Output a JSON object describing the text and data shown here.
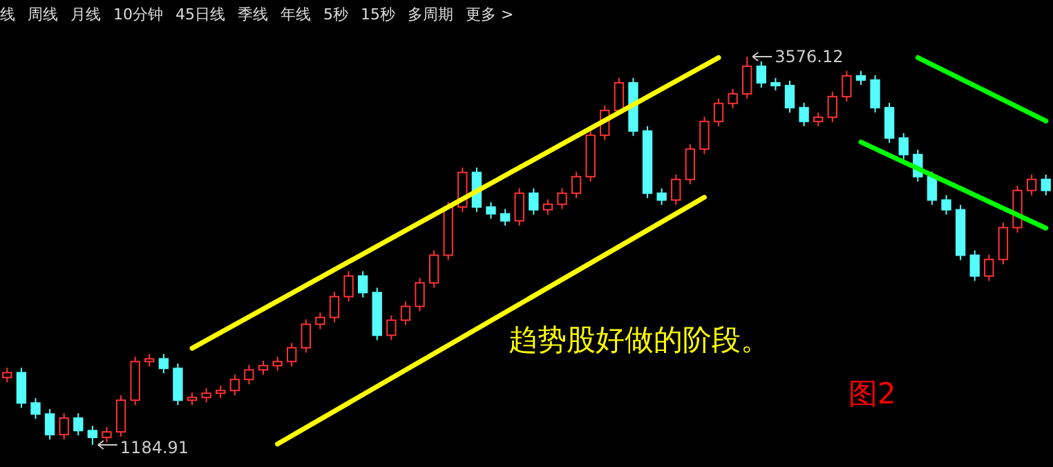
{
  "chart_data": {
    "type": "candlestick",
    "categories": [
      null,
      null,
      null,
      null,
      null,
      null,
      null,
      null,
      null,
      null,
      null,
      null,
      null,
      null,
      null,
      null,
      null,
      null,
      null,
      null,
      null,
      null,
      null,
      null,
      null,
      null,
      null,
      null,
      null,
      null,
      null,
      null,
      null,
      null,
      null,
      null,
      null,
      null,
      null,
      null,
      null,
      null,
      null,
      null,
      null,
      null,
      null,
      null,
      null,
      null,
      null,
      null,
      null,
      null,
      null,
      null,
      null,
      null,
      null,
      null,
      null,
      null,
      null,
      null,
      null,
      null,
      null,
      null,
      null,
      null,
      null,
      null,
      null,
      null
    ],
    "ohlc": [
      [
        1600,
        1660,
        1570,
        1630
      ],
      [
        1630,
        1660,
        1413,
        1443
      ],
      [
        1443,
        1473,
        1345,
        1375
      ],
      [
        1375,
        1405,
        1218,
        1248
      ],
      [
        1248,
        1380,
        1218,
        1350
      ],
      [
        1350,
        1380,
        1243,
        1273
      ],
      [
        1273,
        1303,
        1184.91,
        1231
      ],
      [
        1231,
        1295,
        1201,
        1265
      ],
      [
        1265,
        1490,
        1235,
        1460
      ],
      [
        1460,
        1728,
        1430,
        1698
      ],
      [
        1698,
        1745,
        1668,
        1715
      ],
      [
        1715,
        1745,
        1626,
        1656
      ],
      [
        1656,
        1686,
        1430,
        1460
      ],
      [
        1460,
        1507,
        1430,
        1477
      ],
      [
        1477,
        1533,
        1447,
        1503
      ],
      [
        1503,
        1550,
        1473,
        1520
      ],
      [
        1520,
        1618,
        1490,
        1588
      ],
      [
        1588,
        1677,
        1558,
        1647
      ],
      [
        1647,
        1703,
        1617,
        1673
      ],
      [
        1673,
        1728,
        1643,
        1698
      ],
      [
        1698,
        1813,
        1668,
        1783
      ],
      [
        1783,
        1958,
        1753,
        1928
      ],
      [
        1928,
        2000,
        1898,
        1970
      ],
      [
        1970,
        2128,
        1940,
        2098
      ],
      [
        2098,
        2255,
        2068,
        2225
      ],
      [
        2225,
        2255,
        2093,
        2123
      ],
      [
        2123,
        2153,
        1830,
        1860
      ],
      [
        1860,
        1983,
        1830,
        1953
      ],
      [
        1953,
        2068,
        1923,
        2038
      ],
      [
        2038,
        2213,
        2008,
        2183
      ],
      [
        2183,
        2383,
        2153,
        2353
      ],
      [
        2353,
        2680,
        2323,
        2650
      ],
      [
        2650,
        2893,
        2620,
        2863
      ],
      [
        2863,
        2893,
        2620,
        2650
      ],
      [
        2650,
        2680,
        2578,
        2608
      ],
      [
        2608,
        2638,
        2535,
        2565
      ],
      [
        2565,
        2765,
        2535,
        2735
      ],
      [
        2735,
        2765,
        2603,
        2633
      ],
      [
        2633,
        2697,
        2603,
        2667
      ],
      [
        2667,
        2765,
        2637,
        2735
      ],
      [
        2735,
        2867,
        2705,
        2837
      ],
      [
        2837,
        3122,
        2807,
        3092
      ],
      [
        3092,
        3275,
        3062,
        3245
      ],
      [
        3245,
        3445,
        3215,
        3415
      ],
      [
        3415,
        3445,
        3088,
        3118
      ],
      [
        3118,
        3148,
        2705,
        2735
      ],
      [
        2735,
        2765,
        2663,
        2693
      ],
      [
        2693,
        2850,
        2663,
        2820
      ],
      [
        2820,
        3037,
        2790,
        3007
      ],
      [
        3007,
        3207,
        2977,
        3177
      ],
      [
        3177,
        3318,
        3147,
        3288
      ],
      [
        3288,
        3377,
        3258,
        3347
      ],
      [
        3347,
        3576.12,
        3317,
        3517
      ],
      [
        3517,
        3547,
        3385,
        3415
      ],
      [
        3415,
        3445,
        3368,
        3398
      ],
      [
        3398,
        3428,
        3232,
        3262
      ],
      [
        3262,
        3292,
        3147,
        3177
      ],
      [
        3177,
        3233,
        3147,
        3203
      ],
      [
        3203,
        3360,
        3173,
        3330
      ],
      [
        3330,
        3488,
        3300,
        3458
      ],
      [
        3458,
        3488,
        3402,
        3432
      ],
      [
        3432,
        3462,
        3232,
        3262
      ],
      [
        3262,
        3292,
        3045,
        3075
      ],
      [
        3075,
        3105,
        2943,
        2973
      ],
      [
        2973,
        3003,
        2807,
        2837
      ],
      [
        2837,
        2867,
        2663,
        2693
      ],
      [
        2693,
        2723,
        2603,
        2633
      ],
      [
        2633,
        2663,
        2323,
        2353
      ],
      [
        2353,
        2383,
        2195,
        2225
      ],
      [
        2225,
        2357,
        2195,
        2327
      ],
      [
        2327,
        2553,
        2297,
        2523
      ],
      [
        2523,
        2782,
        2493,
        2752
      ],
      [
        2752,
        2850,
        2722,
        2820
      ],
      [
        2820,
        2850,
        2722,
        2752
      ]
    ],
    "series": [
      {
        "type": "line",
        "color": "#ffff00",
        "values": [
          null,
          null,
          null,
          null,
          null,
          null,
          null,
          null,
          null,
          null,
          null,
          null,
          null,
          1780,
          null,
          null,
          null,
          null,
          null,
          null,
          null,
          null,
          null,
          null,
          null,
          null,
          null,
          null,
          null,
          null,
          null,
          null,
          null,
          null,
          null,
          null,
          null,
          null,
          null,
          null,
          null,
          null,
          null,
          null,
          null,
          null,
          null,
          null,
          null,
          null,
          3570,
          null,
          null,
          null,
          null,
          null,
          null,
          null,
          null,
          null,
          null,
          null,
          null,
          null,
          null,
          null,
          null,
          null,
          null,
          null,
          null,
          null,
          null,
          null
        ]
      },
      {
        "type": "line",
        "color": "#ffff00",
        "values": [
          null,
          null,
          null,
          null,
          null,
          null,
          null,
          null,
          null,
          null,
          null,
          null,
          null,
          null,
          null,
          null,
          null,
          null,
          null,
          1190,
          null,
          null,
          null,
          null,
          null,
          null,
          null,
          null,
          null,
          null,
          null,
          null,
          null,
          null,
          null,
          null,
          null,
          null,
          null,
          null,
          null,
          null,
          null,
          null,
          null,
          null,
          null,
          null,
          null,
          2710,
          null,
          null,
          null,
          null,
          null,
          null,
          null,
          null,
          null,
          null,
          null,
          null,
          null,
          null,
          null,
          null,
          null,
          null,
          null,
          null,
          null,
          null,
          null,
          null
        ]
      },
      {
        "type": "line",
        "color": "#00ff00",
        "values": [
          null,
          null,
          null,
          null,
          null,
          null,
          null,
          null,
          null,
          null,
          null,
          null,
          null,
          null,
          null,
          null,
          null,
          null,
          null,
          null,
          null,
          null,
          null,
          null,
          null,
          null,
          null,
          null,
          null,
          null,
          null,
          null,
          null,
          null,
          null,
          null,
          null,
          null,
          null,
          null,
          null,
          null,
          null,
          null,
          null,
          null,
          null,
          null,
          null,
          null,
          null,
          null,
          null,
          null,
          null,
          null,
          null,
          null,
          null,
          null,
          null,
          null,
          null,
          null,
          3570,
          null,
          null,
          null,
          null,
          null,
          null,
          null,
          null,
          3180
        ]
      },
      {
        "type": "line",
        "color": "#00ff00",
        "values": [
          null,
          null,
          null,
          null,
          null,
          null,
          null,
          null,
          null,
          null,
          null,
          null,
          null,
          null,
          null,
          null,
          null,
          null,
          null,
          null,
          null,
          null,
          null,
          null,
          null,
          null,
          null,
          null,
          null,
          null,
          null,
          null,
          null,
          null,
          null,
          null,
          null,
          null,
          null,
          null,
          null,
          null,
          null,
          null,
          null,
          null,
          null,
          null,
          null,
          null,
          null,
          null,
          null,
          null,
          null,
          null,
          null,
          null,
          null,
          null,
          3050,
          null,
          null,
          null,
          null,
          null,
          null,
          null,
          null,
          null,
          null,
          null,
          null,
          2520
        ]
      }
    ],
    "annotations": [
      "线",
      "周线",
      "月线",
      "10分钟",
      "45日线",
      "季线",
      "年线",
      "5秒",
      "15秒",
      "多周期",
      "更多 >",
      "3576.12",
      "1184.91",
      "趋势股好做的阶段。",
      "图2"
    ]
  }
}
